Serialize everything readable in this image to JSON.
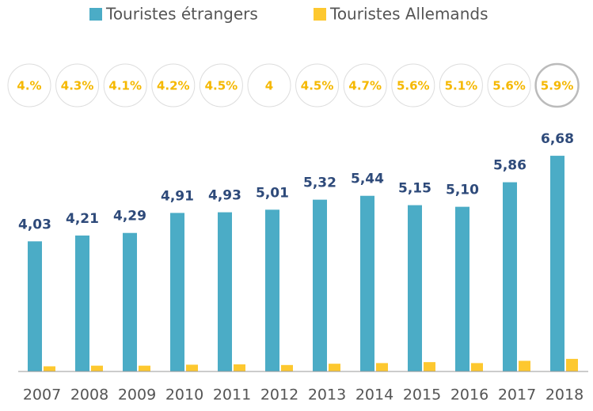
{
  "chart_data": {
    "type": "bar",
    "categories": [
      "2007",
      "2008",
      "2009",
      "2010",
      "2011",
      "2012",
      "2013",
      "2014",
      "2015",
      "2016",
      "2017",
      "2018"
    ],
    "series": [
      {
        "name": "Touristes étrangers",
        "color": "#4bacc6",
        "values": [
          4.03,
          4.21,
          4.29,
          4.91,
          4.93,
          5.01,
          5.32,
          5.44,
          5.15,
          5.1,
          5.86,
          6.68
        ],
        "value_labels": [
          "4,03",
          "4,21",
          "4,29",
          "4,91",
          "4,93",
          "5,01",
          "5,32",
          "5,44",
          "5,15",
          "5,10",
          "5,86",
          "6,68"
        ]
      },
      {
        "name": "Touristes Allemands",
        "color": "#fdc82f",
        "values": [
          0.16,
          0.18,
          0.18,
          0.21,
          0.22,
          0.2,
          0.24,
          0.26,
          0.29,
          0.26,
          0.33,
          0.39
        ]
      }
    ],
    "annotations": [
      {
        "value": 4,
        "label": "4.%"
      },
      {
        "value": 4.3,
        "label": "4.3%"
      },
      {
        "value": 4.1,
        "label": "4.1%"
      },
      {
        "value": 4.2,
        "label": "4.2%"
      },
      {
        "value": 4.5,
        "label": "4.5%"
      },
      4,
      {
        "value": 4.5,
        "label": "4.5%"
      },
      {
        "value": 4.7,
        "label": "4.7%"
      },
      {
        "value": 5.6,
        "label": "5.6%"
      },
      {
        "value": 5.1,
        "label": "5.1%"
      },
      {
        "value": 5.6,
        "label": "5.6%"
      },
      {
        "value": 5.9,
        "label": "5.9%"
      }
    ],
    "ylim": [
      0,
      7
    ]
  }
}
